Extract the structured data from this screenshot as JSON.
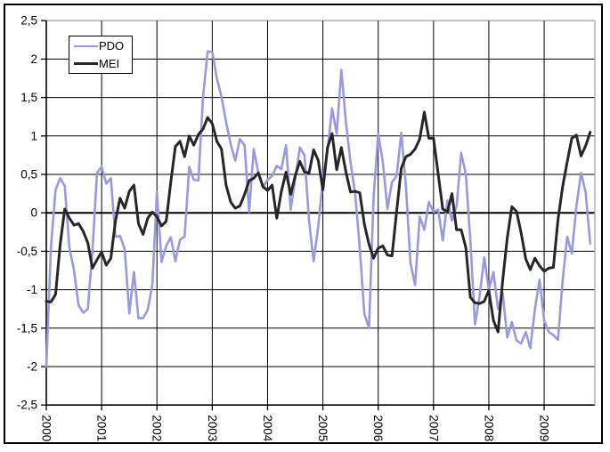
{
  "figure": {
    "background": "#ffffff",
    "border_color": "#000000"
  },
  "legend": {
    "position": "top-left",
    "items": [
      {
        "label": "PDO",
        "color": "#9999dc",
        "line_width": 2.6
      },
      {
        "label": "MEI",
        "color": "#262626",
        "line_width": 3
      }
    ]
  },
  "chart_data": {
    "type": "line",
    "title": "",
    "xlabel": "",
    "ylabel": "",
    "grid": true,
    "gridline_color": "#000000",
    "plot_border_color": "#a6a6a6",
    "ylim": [
      -2.5,
      2.5
    ],
    "y_tick_step": 0.5,
    "y_tick_labels": [
      "2,5",
      "2",
      "1,5",
      "1",
      "0,5",
      "0",
      "-0,5",
      "-1",
      "-1,5",
      "-2",
      "-2,5"
    ],
    "x_tick_labels": [
      "2000",
      "2001",
      "2002",
      "2003",
      "2004",
      "2005",
      "2006",
      "2007",
      "2008",
      "2009"
    ],
    "x_tick_label_rotation_deg": 90,
    "x": {
      "frequency": "monthly",
      "start_year": 2000,
      "start_month": 1,
      "end_year": 2009,
      "end_month": 11,
      "points": 119,
      "months_per_year_gridline": 12
    },
    "legend_position": "top-left",
    "series": [
      {
        "name": "PDO",
        "color": "#9999dc",
        "width": 2.6,
        "values": [
          -2.0,
          -0.45,
          0.3,
          0.45,
          0.35,
          -0.45,
          -0.75,
          -1.2,
          -1.3,
          -1.25,
          -0.5,
          0.52,
          0.6,
          0.38,
          0.45,
          -0.31,
          -0.3,
          -0.47,
          -1.31,
          -0.77,
          -1.37,
          -1.37,
          -1.26,
          -0.93,
          0.27,
          -0.64,
          -0.43,
          -0.32,
          -0.63,
          -0.35,
          -0.31,
          0.6,
          0.43,
          0.42,
          1.51,
          2.1,
          2.09,
          1.75,
          1.51,
          1.18,
          0.89,
          0.68,
          0.96,
          0.88,
          0.01,
          0.83,
          0.52,
          0.33,
          0.43,
          0.48,
          0.61,
          0.57,
          0.88,
          0.04,
          0.44,
          0.85,
          0.75,
          -0.11,
          -0.63,
          -0.17,
          0.44,
          0.81,
          1.36,
          1.03,
          1.86,
          1.17,
          0.66,
          0.25,
          -0.46,
          -1.32,
          -1.5,
          0.2,
          1.03,
          0.66,
          0.05,
          0.4,
          0.48,
          1.04,
          0.35,
          -0.65,
          -0.94,
          -0.05,
          -0.22,
          0.14,
          0.01,
          0.04,
          -0.36,
          0.16,
          -0.1,
          0.09,
          0.78,
          0.5,
          -0.36,
          -1.45,
          -1.08,
          -0.58,
          -1.0,
          -0.77,
          -1.25,
          -1.04,
          -1.62,
          -1.42,
          -1.66,
          -1.7,
          -1.55,
          -1.76,
          -1.25,
          -0.87,
          -1.4,
          -1.55,
          -1.59,
          -1.65,
          -0.88,
          -0.31,
          -0.53,
          0.09,
          0.52,
          0.27,
          -0.4
        ]
      },
      {
        "name": "MEI",
        "color": "#262626",
        "width": 3,
        "values": [
          -1.15,
          -1.16,
          -1.06,
          -0.42,
          0.05,
          -0.07,
          -0.16,
          -0.14,
          -0.24,
          -0.39,
          -0.72,
          -0.61,
          -0.51,
          -0.68,
          -0.59,
          -0.11,
          0.19,
          0.06,
          0.28,
          0.36,
          -0.14,
          -0.28,
          -0.07,
          0.01,
          -0.05,
          -0.17,
          -0.11,
          0.4,
          0.86,
          0.93,
          0.73,
          1.0,
          0.88,
          1.02,
          1.09,
          1.24,
          1.16,
          0.93,
          0.83,
          0.36,
          0.14,
          0.06,
          0.09,
          0.24,
          0.42,
          0.45,
          0.52,
          0.34,
          0.29,
          0.36,
          -0.07,
          0.28,
          0.53,
          0.24,
          0.48,
          0.67,
          0.53,
          0.52,
          0.82,
          0.68,
          0.3,
          0.85,
          1.03,
          0.56,
          0.85,
          0.53,
          0.27,
          0.28,
          0.26,
          -0.15,
          -0.41,
          -0.59,
          -0.46,
          -0.43,
          -0.55,
          -0.56,
          0.02,
          0.58,
          0.73,
          0.76,
          0.83,
          0.96,
          1.31,
          0.97,
          0.97,
          0.51,
          0.05,
          0.01,
          0.25,
          -0.22,
          -0.22,
          -0.45,
          -1.1,
          -1.17,
          -1.18,
          -1.15,
          -1.01,
          -1.4,
          -1.55,
          -0.88,
          -0.33,
          0.08,
          0.02,
          -0.26,
          -0.6,
          -0.74,
          -0.59,
          -0.69,
          -0.76,
          -0.72,
          -0.71,
          -0.09,
          0.34,
          0.66,
          0.97,
          1.01,
          0.74,
          0.87,
          1.05
        ]
      }
    ]
  }
}
